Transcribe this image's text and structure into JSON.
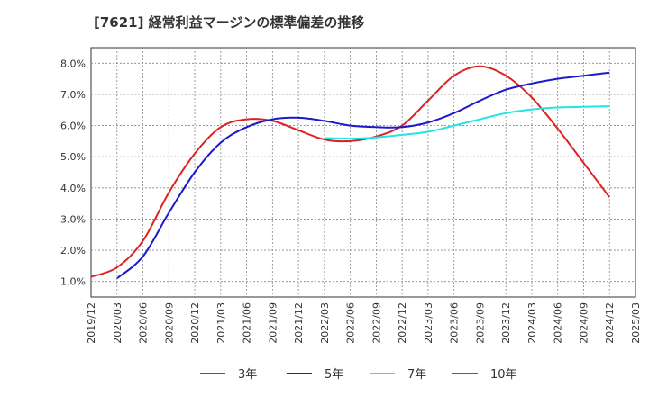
{
  "title": "[7621]  経常利益マージンの標準偏差の推移",
  "chart_data": {
    "type": "line",
    "title": "[7621]  経常利益マージンの標準偏差の推移",
    "xlabel": "",
    "ylabel": "",
    "x_ticks": [
      "2019/12",
      "2020/03",
      "2020/06",
      "2020/09",
      "2020/12",
      "2021/03",
      "2021/06",
      "2021/09",
      "2021/12",
      "2022/03",
      "2022/06",
      "2022/09",
      "2022/12",
      "2023/03",
      "2023/06",
      "2023/09",
      "2023/12",
      "2024/03",
      "2024/06",
      "2024/09",
      "2024/12",
      "2025/03"
    ],
    "y_ticks": [
      "1.0%",
      "2.0%",
      "3.0%",
      "4.0%",
      "5.0%",
      "6.0%",
      "7.0%",
      "8.0%"
    ],
    "ylim": [
      0.5,
      8.5
    ],
    "grid": true,
    "legend_position": "bottom",
    "series": [
      {
        "name": "3年",
        "color": "#dd2222",
        "points": [
          [
            "2019/12",
            1.15
          ],
          [
            "2020/03",
            1.45
          ],
          [
            "2020/06",
            2.3
          ],
          [
            "2020/09",
            3.85
          ],
          [
            "2020/12",
            5.1
          ],
          [
            "2021/03",
            5.95
          ],
          [
            "2021/06",
            6.2
          ],
          [
            "2021/09",
            6.15
          ],
          [
            "2021/12",
            5.85
          ],
          [
            "2022/03",
            5.55
          ],
          [
            "2022/06",
            5.5
          ],
          [
            "2022/09",
            5.65
          ],
          [
            "2022/12",
            6.0
          ],
          [
            "2023/03",
            6.8
          ],
          [
            "2023/06",
            7.6
          ],
          [
            "2023/09",
            7.9
          ],
          [
            "2023/12",
            7.6
          ],
          [
            "2024/03",
            6.9
          ],
          [
            "2024/06",
            5.9
          ],
          [
            "2024/09",
            4.8
          ],
          [
            "2024/12",
            3.7
          ]
        ]
      },
      {
        "name": "5年",
        "color": "#1a1acc",
        "points": [
          [
            "2020/03",
            1.1
          ],
          [
            "2020/06",
            1.8
          ],
          [
            "2020/09",
            3.2
          ],
          [
            "2020/12",
            4.5
          ],
          [
            "2021/03",
            5.45
          ],
          [
            "2021/06",
            5.95
          ],
          [
            "2021/09",
            6.2
          ],
          [
            "2021/12",
            6.25
          ],
          [
            "2022/03",
            6.15
          ],
          [
            "2022/06",
            6.0
          ],
          [
            "2022/09",
            5.95
          ],
          [
            "2022/12",
            5.95
          ],
          [
            "2023/03",
            6.1
          ],
          [
            "2023/06",
            6.4
          ],
          [
            "2023/09",
            6.8
          ],
          [
            "2023/12",
            7.15
          ],
          [
            "2024/03",
            7.35
          ],
          [
            "2024/06",
            7.5
          ],
          [
            "2024/09",
            7.6
          ],
          [
            "2024/12",
            7.7
          ]
        ]
      },
      {
        "name": "7年",
        "color": "#22e5e5",
        "points": [
          [
            "2022/03",
            5.6
          ],
          [
            "2022/06",
            5.58
          ],
          [
            "2022/09",
            5.62
          ],
          [
            "2022/12",
            5.7
          ],
          [
            "2023/03",
            5.8
          ],
          [
            "2023/06",
            6.0
          ],
          [
            "2023/09",
            6.2
          ],
          [
            "2023/12",
            6.4
          ],
          [
            "2024/03",
            6.52
          ],
          [
            "2024/06",
            6.58
          ],
          [
            "2024/09",
            6.6
          ],
          [
            "2024/12",
            6.62
          ]
        ]
      },
      {
        "name": "10年",
        "color": "#228822",
        "points": []
      }
    ]
  }
}
